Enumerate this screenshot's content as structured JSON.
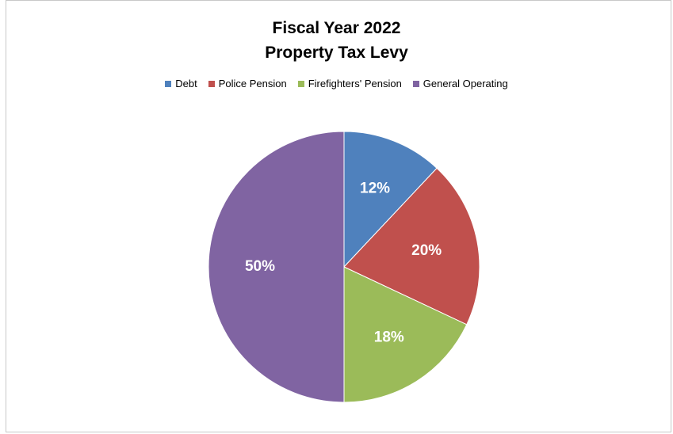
{
  "chart_data": {
    "type": "pie",
    "title": "Fiscal Year 2022",
    "subtitle": "Property Tax Levy",
    "legend_position": "top",
    "start_angle": "12 o'clock",
    "direction": "clockwise",
    "slices": [
      {
        "name": "Debt",
        "value": 12,
        "label": "12%",
        "color": "#4f81bd"
      },
      {
        "name": "Police Pension",
        "value": 20,
        "label": "20%",
        "color": "#c0504d"
      },
      {
        "name": "Firefighters' Pension",
        "value": 18,
        "label": "18%",
        "color": "#9bbb59"
      },
      {
        "name": "General Operating",
        "value": 50,
        "label": "50%",
        "color": "#8064a2"
      }
    ]
  }
}
